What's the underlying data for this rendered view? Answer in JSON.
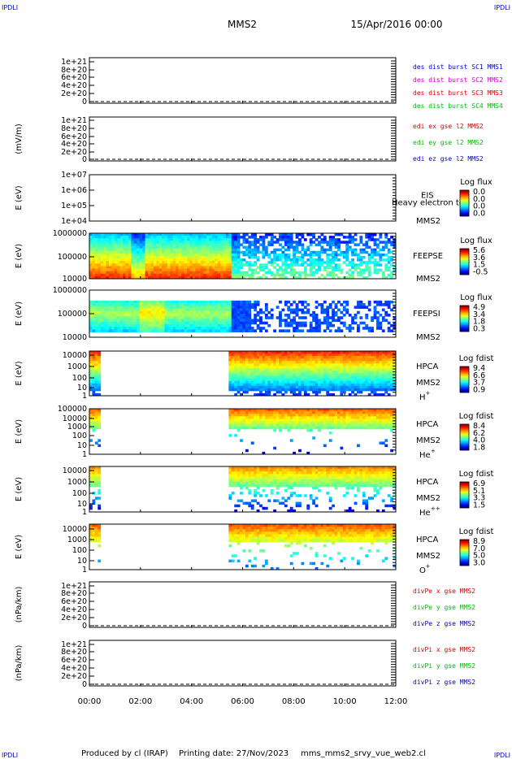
{
  "header": {
    "corner_left_top": "IPDLI",
    "corner_right_top": "IPDLI",
    "title": "MMS2",
    "datetime": "15/Apr/2016 00:00"
  },
  "footer": {
    "corner_left_bottom": "IPDLI",
    "corner_right_bottom": "IPDLI",
    "produced_by": "Produced by cl (IRAP)",
    "printing_date": "Printing date: 27/Nov/2023",
    "filename": "mms_mms2_srvy_vue_web2.cl"
  },
  "time_axis": {
    "ticks": [
      "00:00",
      "02:00",
      "04:00",
      "06:00",
      "08:00",
      "10:00",
      "12:00"
    ],
    "range_hours": [
      0,
      12
    ]
  },
  "colors": {
    "blue": "#0000cc",
    "magenta": "#cc00cc",
    "red": "#dd0000",
    "green": "#00bb00"
  },
  "chart_data": [
    {
      "type": "line",
      "panel": "des-dist",
      "ylabel": "",
      "tick_labels": [
        "1e+21",
        "8e+20",
        "6e+20",
        "4e+20",
        "2e+20",
        "0"
      ],
      "ylim": [
        0,
        1e+21
      ],
      "series": [
        {
          "name": "des dist burst SC1 MMS1",
          "color": "#0000cc"
        },
        {
          "name": "des dist burst SC2 MMS2",
          "color": "#cc00cc"
        },
        {
          "name": "des dist burst SC3 MMS3",
          "color": "#dd0000"
        },
        {
          "name": "des dist burst SC4 MMS4",
          "color": "#00bb00"
        }
      ]
    },
    {
      "type": "line",
      "panel": "edi-e",
      "ylabel": "(mV/m)",
      "tick_labels": [
        "1e+21",
        "8e+20",
        "6e+20",
        "4e+20",
        "2e+20",
        "0"
      ],
      "ylim": [
        0,
        1e+21
      ],
      "series": [
        {
          "name": "edi ex gse l2 MMS2",
          "color": "#dd0000"
        },
        {
          "name": "edi ey gse l2 MMS2",
          "color": "#00bb00"
        },
        {
          "name": "edi ez gse l2 MMS2",
          "color": "#0000cc"
        }
      ]
    },
    {
      "type": "heatmap",
      "panel": "eis",
      "ylabel": "E (eV)",
      "tick_labels": [
        "1e+07",
        "1e+06",
        "1e+05",
        "1e+04"
      ],
      "ylim": [
        10000.0,
        10000000.0
      ],
      "instrument": "EIS",
      "extra_label": "Heavy electron to",
      "spacecraft": "MMS2",
      "colorbar_title": "Log flux",
      "colorbar_ticks": [
        "0.0",
        "0.0",
        "0.0",
        "0.0"
      ]
    },
    {
      "type": "heatmap",
      "panel": "feepse",
      "ylabel": "E (eV)",
      "tick_labels": [
        "1000000",
        "100000",
        "10000"
      ],
      "ylim": [
        10000.0,
        1000000.0
      ],
      "instrument": "FEEPSE",
      "spacecraft": "MMS2",
      "colorbar_title": "Log flux",
      "colorbar_ticks": [
        "5.6",
        "3.6",
        "1.5",
        "-0.5"
      ]
    },
    {
      "type": "heatmap",
      "panel": "feepsi",
      "ylabel": "E (eV)",
      "tick_labels": [
        "1000000",
        "100000",
        "10000"
      ],
      "ylim": [
        10000.0,
        1000000.0
      ],
      "instrument": "FEEPSI",
      "spacecraft": "MMS2",
      "colorbar_title": "Log flux",
      "colorbar_ticks": [
        "4.9",
        "3.4",
        "1.8",
        "0.3"
      ]
    },
    {
      "type": "heatmap",
      "panel": "hpca-h",
      "ylabel": "E (eV)",
      "tick_labels": [
        "10000",
        "1000",
        "100",
        "10",
        "1"
      ],
      "ylim": [
        1,
        30000.0
      ],
      "instrument": "HPCA",
      "spacecraft": "MMS2",
      "species": "H",
      "species_sup": "+",
      "colorbar_title": "Log fdist",
      "colorbar_ticks": [
        "9.4",
        "6.6",
        "3.7",
        "0.9"
      ]
    },
    {
      "type": "heatmap",
      "panel": "hpca-he",
      "ylabel": "E (eV)",
      "tick_labels": [
        "100000",
        "10000",
        "1000",
        "100",
        "10",
        "1"
      ],
      "ylim": [
        1,
        100000.0
      ],
      "instrument": "HPCA",
      "spacecraft": "MMS2",
      "species": "He",
      "species_sup": "+",
      "colorbar_title": "Log fdist",
      "colorbar_ticks": [
        "8.4",
        "6.2",
        "4.0",
        "1.8"
      ]
    },
    {
      "type": "heatmap",
      "panel": "hpca-he2",
      "ylabel": "E (eV)",
      "tick_labels": [
        "10000",
        "1000",
        "100",
        "10",
        "1"
      ],
      "ylim": [
        1,
        30000.0
      ],
      "instrument": "HPCA",
      "spacecraft": "MMS2",
      "species": "He",
      "species_sup": "++",
      "colorbar_title": "Log fdist",
      "colorbar_ticks": [
        "6.9",
        "5.1",
        "3.3",
        "1.5"
      ]
    },
    {
      "type": "heatmap",
      "panel": "hpca-o",
      "ylabel": "E (eV)",
      "tick_labels": [
        "10000",
        "1000",
        "100",
        "10",
        "1"
      ],
      "ylim": [
        1,
        30000.0
      ],
      "instrument": "HPCA",
      "spacecraft": "MMS2",
      "species": "O",
      "species_sup": "+",
      "colorbar_title": "Log fdist",
      "colorbar_ticks": [
        "8.9",
        "7.0",
        "5.0",
        "3.0"
      ]
    },
    {
      "type": "line",
      "panel": "divpe",
      "ylabel": "(nPa/km)",
      "tick_labels": [
        "1e+21",
        "8e+20",
        "6e+20",
        "4e+20",
        "2e+20",
        "0"
      ],
      "ylim": [
        0,
        1e+21
      ],
      "series": [
        {
          "name": "divPe x gse MMS2",
          "color": "#dd0000"
        },
        {
          "name": "divPe y gse MMS2",
          "color": "#00bb00"
        },
        {
          "name": "divPe z gse MMS2",
          "color": "#0000cc"
        }
      ]
    },
    {
      "type": "line",
      "panel": "divpi",
      "ylabel": "(nPa/km)",
      "tick_labels": [
        "1e+21",
        "8e+20",
        "6e+20",
        "4e+20",
        "2e+20",
        "0"
      ],
      "ylim": [
        0,
        1e+21
      ],
      "series": [
        {
          "name": "divPi x gse MMS2",
          "color": "#dd0000"
        },
        {
          "name": "divPi y gse MMS2",
          "color": "#00bb00"
        },
        {
          "name": "divPi z gse MMS2",
          "color": "#0000cc"
        }
      ]
    }
  ]
}
